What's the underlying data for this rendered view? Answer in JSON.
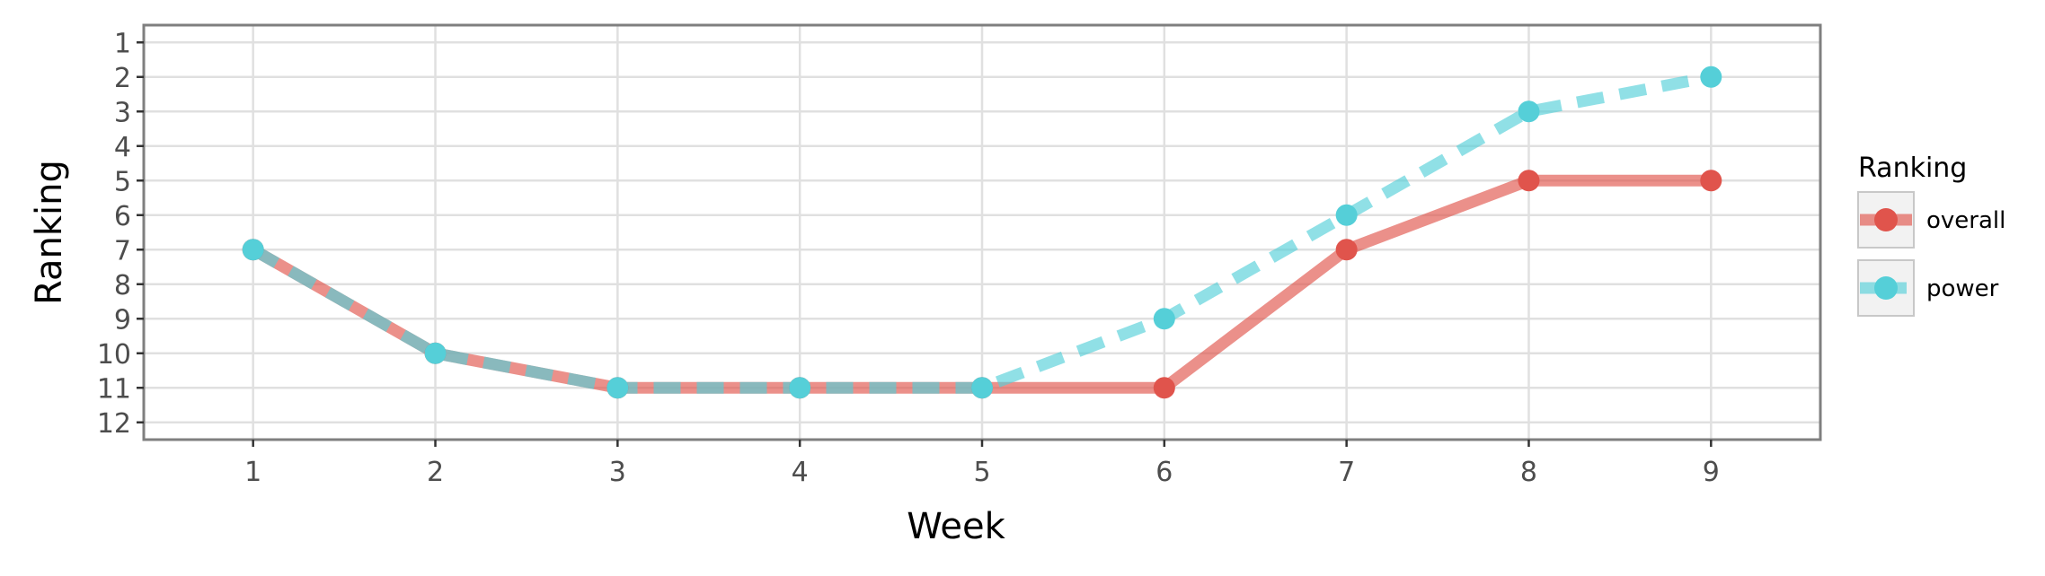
{
  "chart_data": {
    "type": "line",
    "title": "",
    "xlabel": "Week",
    "ylabel": "Ranking",
    "x": [
      1,
      2,
      3,
      4,
      5,
      6,
      7,
      8,
      9
    ],
    "x_ticks": [
      "1",
      "2",
      "3",
      "4",
      "5",
      "6",
      "7",
      "8",
      "9"
    ],
    "y_ticks": [
      "1",
      "2",
      "3",
      "4",
      "5",
      "6",
      "7",
      "8",
      "9",
      "10",
      "11",
      "12"
    ],
    "xlim": [
      0.4,
      9.6
    ],
    "ylim": [
      12.5,
      0.5
    ],
    "y_reversed": true,
    "grid": true,
    "legend": {
      "title": "Ranking",
      "position": "right"
    },
    "series": [
      {
        "name": "overall",
        "color": "#e0544c",
        "style": "solid",
        "values": [
          7,
          10,
          11,
          11,
          11,
          11,
          7,
          5,
          5
        ]
      },
      {
        "name": "power",
        "color": "#55cfd8",
        "style": "dashed",
        "values": [
          7,
          10,
          11,
          11,
          11,
          9,
          6,
          3,
          2
        ]
      }
    ]
  },
  "colors": {
    "panel_border": "#7f7f7f",
    "grid": "#e0e0e0",
    "legend_key_bg": "#f2f2f2"
  }
}
